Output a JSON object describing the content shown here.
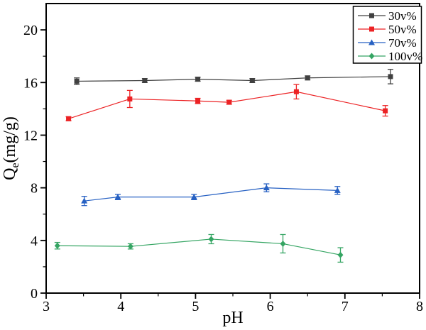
{
  "figure": {
    "background": "#ffffff",
    "frame_color": "#000000"
  },
  "chart_data": {
    "type": "line",
    "title": "",
    "xlabel": "pH",
    "ylabel": "Qe(mg/g)",
    "ylabel_parts": {
      "base": "Q",
      "sub": "e",
      "rest": "(mg/g)"
    },
    "xlim": [
      3,
      8
    ],
    "ylim": [
      0,
      22
    ],
    "x_major_ticks": [
      3,
      4,
      5,
      6,
      7,
      8
    ],
    "x_minor_ticks": [
      3.5,
      4.5,
      5.5,
      6.5,
      7.5
    ],
    "y_major_ticks": [
      0,
      4,
      8,
      12,
      16,
      20
    ],
    "y_minor_ticks": [
      2,
      6,
      10,
      14,
      18
    ],
    "grid": false,
    "legend_position": "top-right",
    "series": [
      {
        "name": "30v%",
        "color": "#404040",
        "marker": "square",
        "x": [
          3.41,
          4.32,
          5.03,
          5.76,
          6.5,
          7.61
        ],
        "y": [
          16.1,
          16.15,
          16.25,
          16.15,
          16.35,
          16.45
        ],
        "yerr": [
          0.25,
          0.15,
          0.15,
          0.15,
          0.15,
          0.55
        ]
      },
      {
        "name": "50v%",
        "color": "#ec2224",
        "marker": "square",
        "x": [
          3.3,
          4.12,
          5.03,
          5.45,
          6.35,
          7.54
        ],
        "y": [
          13.25,
          14.75,
          14.6,
          14.5,
          15.3,
          13.85
        ],
        "yerr": [
          0.15,
          0.65,
          0.2,
          0.15,
          0.55,
          0.4
        ]
      },
      {
        "name": "70v%",
        "color": "#2761c3",
        "marker": "triangle",
        "x": [
          3.51,
          3.96,
          4.98,
          5.95,
          6.9
        ],
        "y": [
          7.0,
          7.3,
          7.3,
          8.0,
          7.8
        ],
        "yerr": [
          0.35,
          0.2,
          0.2,
          0.3,
          0.3
        ]
      },
      {
        "name": "100v%",
        "color": "#35a563",
        "marker": "diamond",
        "x": [
          3.15,
          4.13,
          5.21,
          6.17,
          6.94
        ],
        "y": [
          3.6,
          3.55,
          4.1,
          3.75,
          2.9
        ],
        "yerr": [
          0.25,
          0.2,
          0.35,
          0.7,
          0.55
        ]
      }
    ]
  }
}
